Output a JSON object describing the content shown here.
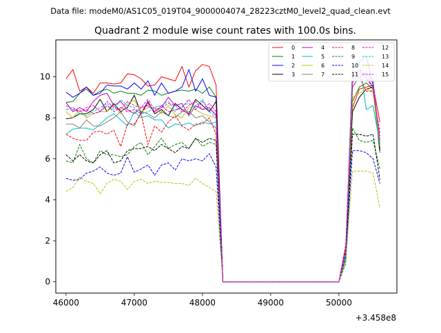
{
  "suptitle": "Data file: modeM0/AS1C05_019T04_9000004074_28223cztM0_level2_quad_clean.evt",
  "chart_data": {
    "type": "line",
    "title": "Quadrant 2 module wise count rates with 100.0s bins.",
    "xlabel": "",
    "ylabel": "",
    "x_offset_label": "+3.458e8",
    "xlim": [
      45850,
      50850
    ],
    "ylim": [
      -0.55,
      11.8
    ],
    "xticks": [
      46000,
      47000,
      48000,
      49000,
      50000
    ],
    "xtick_labels": [
      "46000",
      "47000",
      "48000",
      "49000",
      "50000"
    ],
    "yticks": [
      0,
      2,
      4,
      6,
      8,
      10
    ],
    "ytick_labels": [
      "0",
      "2",
      "4",
      "6",
      "8",
      "10"
    ],
    "grid": false,
    "legend_position": "top-right",
    "x": [
      46000,
      46100,
      46200,
      46300,
      46400,
      46500,
      46600,
      46700,
      46800,
      46900,
      47000,
      47100,
      47200,
      47300,
      47400,
      47500,
      47600,
      47700,
      47800,
      47900,
      48000,
      48100,
      48200,
      48300,
      48400,
      48500,
      48600,
      48700,
      48800,
      48900,
      49000,
      49100,
      49200,
      49300,
      49400,
      49500,
      49600,
      49700,
      49800,
      49900,
      50000,
      50100,
      50200,
      50300,
      50400,
      50500,
      50600
    ],
    "series": [
      {
        "name": "0",
        "color": "#ff0000",
        "dash": "solid",
        "values": [
          9.9,
          10.35,
          9.3,
          9.5,
          9.2,
          9.7,
          9.7,
          9.65,
          9.7,
          10.15,
          10.1,
          9.9,
          9.55,
          9.6,
          10.0,
          9.9,
          9.8,
          10.5,
          9.5,
          10.3,
          10.6,
          10.5,
          9.6,
          0,
          0,
          0,
          0,
          0,
          0,
          0,
          0,
          0,
          0,
          0,
          0,
          0,
          0,
          0,
          0,
          0,
          0,
          1.7,
          8.5,
          9.4,
          9.5,
          9.6,
          7.8
        ]
      },
      {
        "name": "1",
        "color": "#008000",
        "dash": "solid",
        "values": [
          8.75,
          8.8,
          9.2,
          9.4,
          9.1,
          9.3,
          9.4,
          9.2,
          9.3,
          9.2,
          9.2,
          9.1,
          9.35,
          9.3,
          9.1,
          9.2,
          9.3,
          9.35,
          9.3,
          9.4,
          9.2,
          9.5,
          9.0,
          0,
          0,
          0,
          0,
          0,
          0,
          0,
          0,
          0,
          0,
          0,
          0,
          0,
          0,
          0,
          0,
          0,
          0,
          1.2,
          8.8,
          9.5,
          9.7,
          9.4,
          6.3
        ]
      },
      {
        "name": "2",
        "color": "#0000ff",
        "dash": "solid",
        "values": [
          9.25,
          9.0,
          9.2,
          9.5,
          9.1,
          9.2,
          9.6,
          9.55,
          9.55,
          9.4,
          9.7,
          9.4,
          9.8,
          9.1,
          9.7,
          9.2,
          9.3,
          9.5,
          10.35,
          9.3,
          9.9,
          9.1,
          9.0,
          0,
          0,
          0,
          0,
          0,
          0,
          0,
          0,
          0,
          0,
          0,
          0,
          0,
          0,
          0,
          0,
          0,
          0,
          1.5,
          10.4,
          10.7,
          11.0,
          9.6,
          6.5
        ]
      },
      {
        "name": "3",
        "color": "#000000",
        "dash": "solid",
        "values": [
          7.95,
          8.0,
          8.2,
          8.2,
          8.4,
          8.9,
          8.3,
          8.7,
          8.3,
          8.5,
          9.1,
          8.2,
          8.8,
          8.2,
          8.4,
          8.1,
          8.7,
          8.4,
          8.2,
          8.9,
          8.6,
          8.3,
          8.8,
          0,
          0,
          0,
          0,
          0,
          0,
          0,
          0,
          0,
          0,
          0,
          0,
          0,
          0,
          0,
          0,
          0,
          0,
          1.5,
          8.3,
          9.0,
          9.4,
          9.5,
          6.4
        ]
      },
      {
        "name": "4",
        "color": "#bf00bf",
        "dash": "solid",
        "values": [
          8.75,
          8.3,
          8.5,
          8.3,
          8.8,
          9.1,
          9.2,
          8.6,
          8.8,
          8.4,
          8.2,
          8.5,
          8.6,
          8.3,
          8.5,
          9.0,
          8.6,
          8.7,
          8.1,
          8.6,
          8.4,
          8.5,
          8.1,
          0,
          0,
          0,
          0,
          0,
          0,
          0,
          0,
          0,
          0,
          0,
          0,
          0,
          0,
          0,
          0,
          0,
          0,
          1.7,
          10.0,
          10.3,
          10.0,
          9.5,
          6.9
        ]
      },
      {
        "name": "5",
        "color": "#00bfbf",
        "dash": "solid",
        "values": [
          7.2,
          7.45,
          7.5,
          7.5,
          7.4,
          7.7,
          8.0,
          8.2,
          7.9,
          7.6,
          8.3,
          8.0,
          8.1,
          7.9,
          7.9,
          7.5,
          7.7,
          7.65,
          7.75,
          7.6,
          7.8,
          7.7,
          7.8,
          0,
          0,
          0,
          0,
          0,
          0,
          0,
          0,
          0,
          0,
          0,
          0,
          0,
          0,
          0,
          0,
          0,
          0,
          1.3,
          10.5,
          10.8,
          8.4,
          8.6,
          6.7
        ]
      },
      {
        "name": "6",
        "color": "#bfbf00",
        "dash": "solid",
        "values": [
          8.3,
          8.0,
          8.4,
          8.0,
          8.2,
          8.3,
          8.3,
          8.6,
          8.2,
          8.7,
          8.85,
          8.3,
          8.5,
          8.5,
          8.2,
          8.6,
          8.15,
          8.0,
          8.5,
          8.4,
          8.2,
          8.1,
          8.0,
          0,
          0,
          0,
          0,
          0,
          0,
          0,
          0,
          0,
          0,
          0,
          0,
          0,
          0,
          0,
          0,
          0,
          0,
          1.4,
          9.0,
          9.2,
          9.4,
          9.3,
          6.6
        ]
      },
      {
        "name": "7",
        "color": "#808080",
        "dash": "solid",
        "values": [
          7.7,
          7.7,
          7.5,
          7.9,
          7.6,
          7.6,
          7.8,
          8.0,
          8.3,
          7.8,
          7.6,
          8.3,
          8.2,
          8.0,
          8.3,
          8.1,
          8.0,
          8.3,
          8.3,
          8.0,
          8.1,
          7.8,
          7.5,
          0,
          0,
          0,
          0,
          0,
          0,
          0,
          0,
          0,
          0,
          0,
          0,
          0,
          0,
          0,
          0,
          0,
          0,
          1.5,
          9.5,
          10.0,
          10.2,
          9.8,
          6.7
        ]
      },
      {
        "name": "8",
        "color": "#ff0000",
        "dash": "dashed",
        "values": [
          7.2,
          7.0,
          6.9,
          6.9,
          7.3,
          7.35,
          7.2,
          7.4,
          6.6,
          7.7,
          7.7,
          8.2,
          6.7,
          7.6,
          7.3,
          7.8,
          8.1,
          7.6,
          7.4,
          7.7,
          7.7,
          8.0,
          7.2,
          0,
          0,
          0,
          0,
          0,
          0,
          0,
          0,
          0,
          0,
          0,
          0,
          0,
          0,
          0,
          0,
          0,
          0,
          1.8,
          9.5,
          10.0,
          9.3,
          9.3,
          7.3
        ]
      },
      {
        "name": "9",
        "color": "#008000",
        "dash": "dashed",
        "values": [
          5.9,
          5.8,
          6.7,
          6.0,
          5.8,
          6.4,
          6.2,
          6.2,
          6.1,
          6.2,
          6.6,
          6.8,
          6.2,
          6.6,
          7.0,
          6.5,
          6.7,
          6.8,
          6.5,
          7.0,
          6.6,
          6.8,
          6.7,
          0,
          0,
          0,
          0,
          0,
          0,
          0,
          0,
          0,
          0,
          0,
          0,
          0,
          0,
          0,
          0,
          0,
          0,
          0.9,
          7.5,
          6.9,
          6.8,
          6.9,
          5.5
        ]
      },
      {
        "name": "10",
        "color": "#0000ff",
        "dash": "dashed",
        "values": [
          5.05,
          4.95,
          5.0,
          5.3,
          5.4,
          5.6,
          5.3,
          5.2,
          5.3,
          6.1,
          5.35,
          5.5,
          5.7,
          5.2,
          5.7,
          5.8,
          5.45,
          6.0,
          5.9,
          6.0,
          5.9,
          6.25,
          5.6,
          0,
          0,
          0,
          0,
          0,
          0,
          0,
          0,
          0,
          0,
          0,
          0,
          0,
          0,
          0,
          0,
          0,
          0,
          1.2,
          6.4,
          6.4,
          6.3,
          6.0,
          4.8
        ]
      },
      {
        "name": "11",
        "color": "#000000",
        "dash": "dashed",
        "values": [
          6.2,
          5.9,
          6.2,
          5.9,
          5.8,
          6.2,
          6.4,
          5.8,
          5.9,
          6.4,
          6.5,
          6.5,
          6.6,
          6.4,
          6.7,
          6.5,
          6.3,
          6.6,
          6.5,
          7.0,
          6.8,
          7.0,
          6.9,
          0,
          0,
          0,
          0,
          0,
          0,
          0,
          0,
          0,
          0,
          0,
          0,
          0,
          0,
          0,
          0,
          0,
          0,
          1.5,
          7.2,
          7.2,
          7.1,
          7.2,
          5.0
        ]
      },
      {
        "name": "12",
        "color": "#bf00bf",
        "dash": "dashed",
        "values": [
          8.4,
          8.5,
          8.3,
          8.4,
          8.2,
          8.3,
          8.6,
          8.3,
          8.5,
          8.3,
          8.4,
          8.2,
          8.7,
          8.3,
          8.6,
          8.3,
          8.4,
          8.5,
          8.9,
          8.4,
          8.8,
          8.4,
          8.2,
          0,
          0,
          0,
          0,
          0,
          0,
          0,
          0,
          0,
          0,
          0,
          0,
          0,
          0,
          0,
          0,
          0,
          0,
          1.6,
          9.7,
          10.2,
          9.9,
          9.5,
          7.1
        ]
      },
      {
        "name": "13",
        "color": "#00bfbf",
        "dash": "dashed",
        "values": [
          8.4,
          8.5,
          8.2,
          8.1,
          8.3,
          8.5,
          8.7,
          8.4,
          8.9,
          8.6,
          8.5,
          8.2,
          8.3,
          8.5,
          8.6,
          8.8,
          8.3,
          8.6,
          8.7,
          8.5,
          8.9,
          8.3,
          8.0,
          0,
          0,
          0,
          0,
          0,
          0,
          0,
          0,
          0,
          0,
          0,
          0,
          0,
          0,
          0,
          0,
          0,
          0,
          1.4,
          9.9,
          10.0,
          9.8,
          9.9,
          6.8
        ]
      },
      {
        "name": "14",
        "color": "#bfbf00",
        "dash": "dashed",
        "values": [
          4.4,
          4.6,
          5.1,
          4.9,
          4.8,
          4.3,
          4.8,
          5.0,
          4.9,
          4.5,
          4.9,
          5.0,
          4.8,
          4.9,
          4.85,
          4.85,
          4.8,
          4.8,
          4.7,
          5.05,
          4.8,
          4.6,
          4.4,
          0,
          0,
          0,
          0,
          0,
          0,
          0,
          0,
          0,
          0,
          0,
          0,
          0,
          0,
          0,
          0,
          0,
          0,
          1.0,
          5.4,
          5.4,
          5.4,
          5.3,
          3.6
        ]
      },
      {
        "name": "15",
        "color": "#ff00ff",
        "dash": "dashed",
        "values": [
          8.6,
          8.4,
          8.3,
          8.5,
          8.6,
          8.3,
          8.8,
          8.5,
          8.4,
          8.8,
          8.6,
          8.5,
          8.9,
          8.4,
          8.5,
          8.7,
          8.6,
          8.3,
          8.6,
          8.8,
          8.4,
          8.7,
          8.3,
          0,
          0,
          0,
          0,
          0,
          0,
          0,
          0,
          0,
          0,
          0,
          0,
          0,
          0,
          0,
          0,
          0,
          0,
          1.6,
          10.1,
          10.4,
          10.1,
          9.7,
          6.9
        ]
      }
    ]
  }
}
